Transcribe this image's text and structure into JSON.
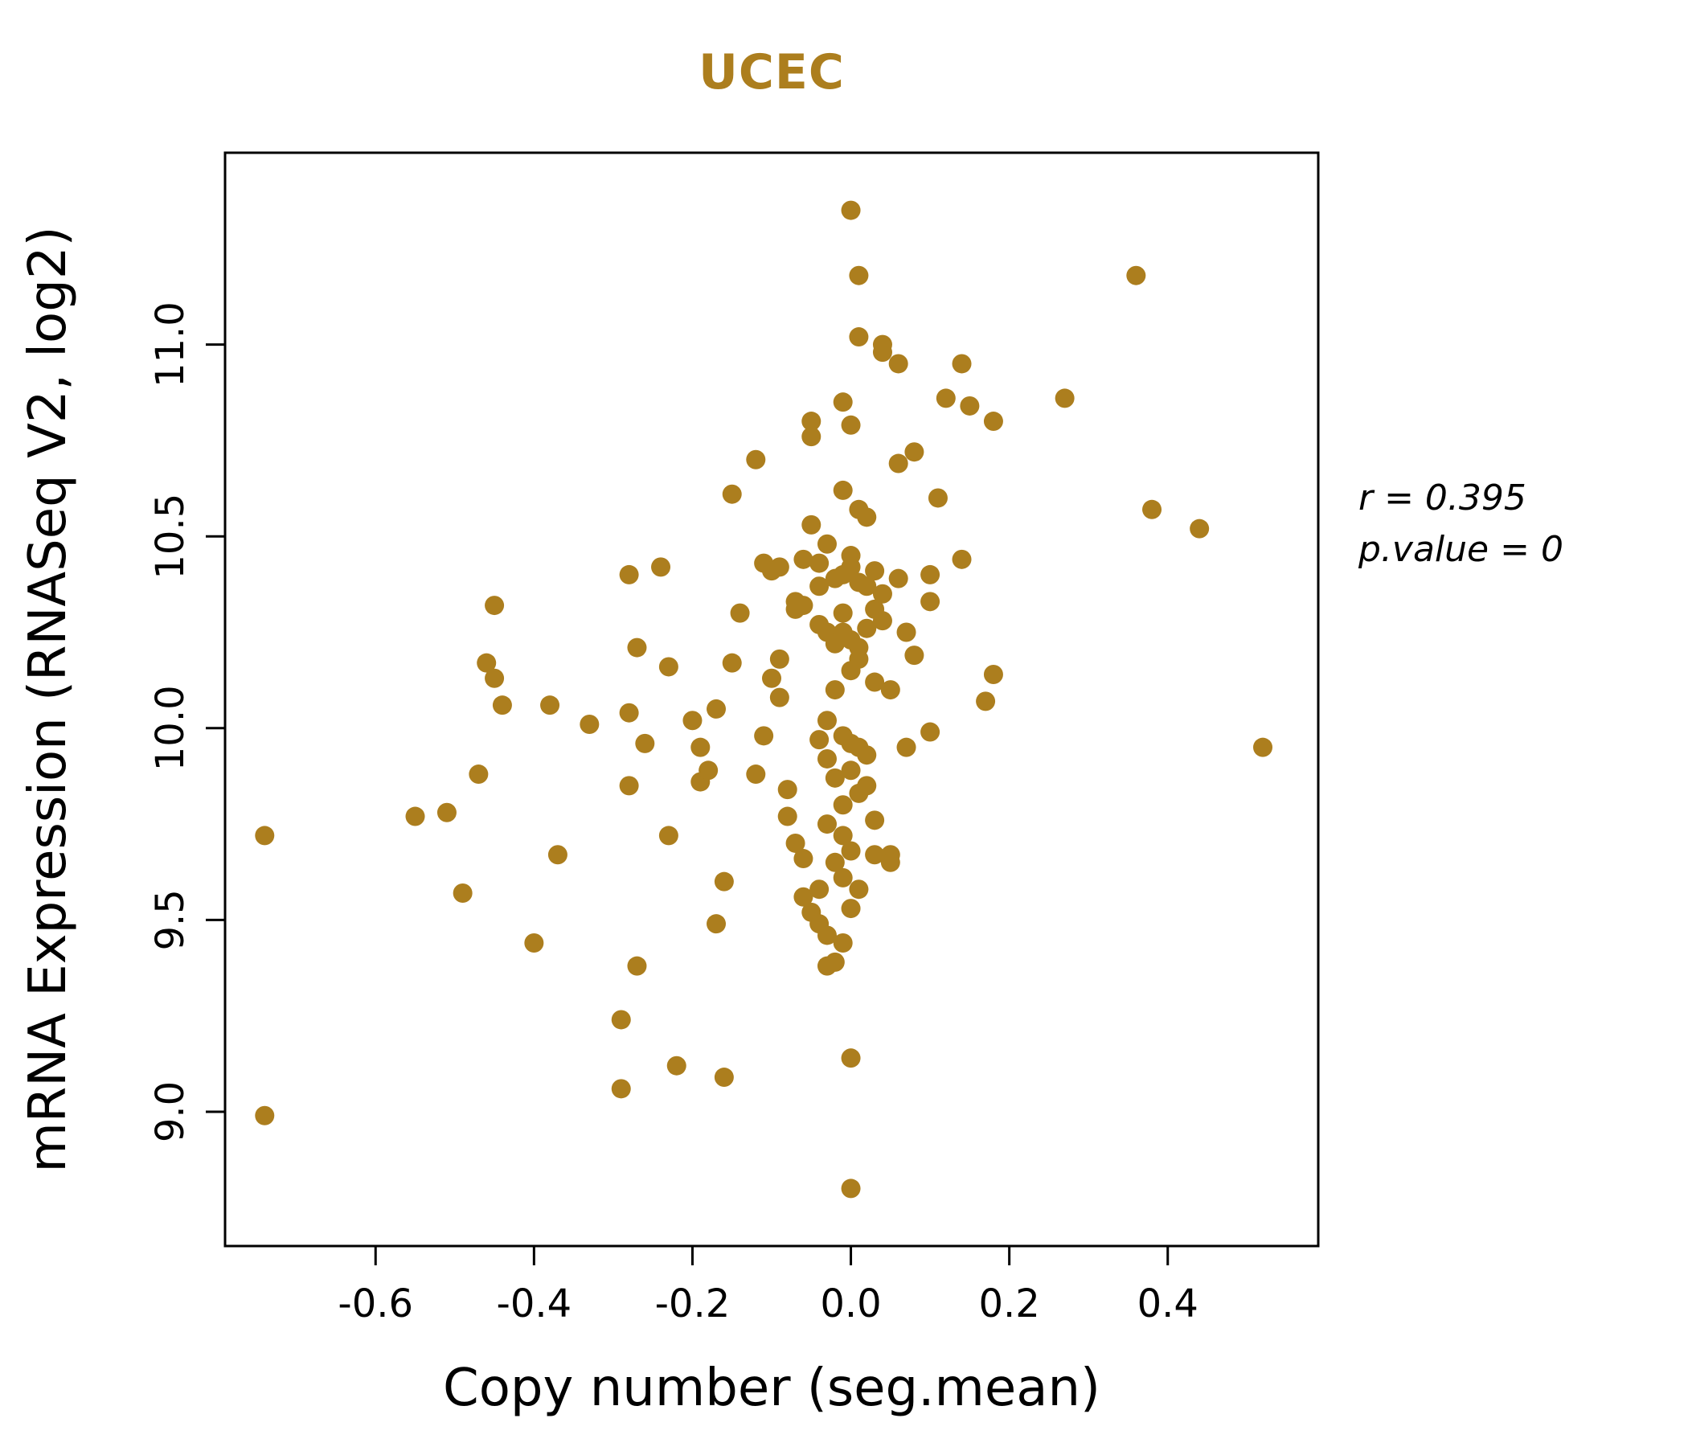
{
  "chart_data": {
    "type": "scatter",
    "title": "UCEC",
    "xlabel": "Copy number (seg.mean)",
    "ylabel": "mRNA Expression (RNASeq V2, log2)",
    "xlim": [
      -0.79,
      0.59
    ],
    "ylim": [
      8.65,
      11.5
    ],
    "grid": false,
    "xticks": {
      "values": [
        -0.6,
        -0.4,
        -0.2,
        0.0,
        0.2,
        0.4
      ],
      "labels": [
        "-0.6",
        "-0.4",
        "-0.2",
        "0.0",
        "0.2",
        "0.4"
      ]
    },
    "yticks": {
      "values": [
        9.0,
        9.5,
        10.0,
        10.5,
        11.0
      ],
      "labels": [
        "9.0",
        "9.5",
        "10.0",
        "10.5",
        "11.0"
      ]
    },
    "point_color": "#AC7E1E",
    "title_color": "#AC7E1E",
    "annotation_lines": [
      "r = 0.395",
      "p.value = 0"
    ],
    "correlation_r": 0.395,
    "p_value": 0,
    "points": [
      [
        -0.74,
        9.72
      ],
      [
        -0.74,
        8.99
      ],
      [
        -0.55,
        9.77
      ],
      [
        -0.51,
        9.78
      ],
      [
        -0.49,
        9.57
      ],
      [
        -0.47,
        9.88
      ],
      [
        -0.46,
        10.17
      ],
      [
        -0.45,
        10.13
      ],
      [
        -0.45,
        10.32
      ],
      [
        -0.44,
        10.06
      ],
      [
        -0.4,
        9.44
      ],
      [
        -0.38,
        10.06
      ],
      [
        -0.37,
        9.67
      ],
      [
        -0.33,
        10.01
      ],
      [
        -0.29,
        9.24
      ],
      [
        -0.29,
        9.06
      ],
      [
        -0.28,
        9.85
      ],
      [
        -0.28,
        10.4
      ],
      [
        -0.28,
        10.04
      ],
      [
        -0.27,
        10.21
      ],
      [
        -0.27,
        9.38
      ],
      [
        -0.26,
        9.96
      ],
      [
        -0.24,
        10.42
      ],
      [
        -0.23,
        10.16
      ],
      [
        -0.23,
        9.72
      ],
      [
        -0.22,
        9.12
      ],
      [
        -0.2,
        10.02
      ],
      [
        -0.19,
        9.95
      ],
      [
        -0.19,
        9.86
      ],
      [
        -0.18,
        9.89
      ],
      [
        -0.17,
        9.49
      ],
      [
        -0.17,
        10.05
      ],
      [
        -0.16,
        9.09
      ],
      [
        -0.16,
        9.6
      ],
      [
        -0.15,
        10.61
      ],
      [
        -0.15,
        10.17
      ],
      [
        -0.14,
        10.3
      ],
      [
        -0.12,
        10.7
      ],
      [
        -0.12,
        9.88
      ],
      [
        -0.11,
        9.98
      ],
      [
        -0.11,
        10.43
      ],
      [
        -0.1,
        10.41
      ],
      [
        -0.1,
        10.13
      ],
      [
        -0.09,
        10.08
      ],
      [
        -0.09,
        10.42
      ],
      [
        -0.09,
        10.18
      ],
      [
        -0.08,
        9.77
      ],
      [
        -0.08,
        9.84
      ],
      [
        -0.07,
        10.31
      ],
      [
        -0.07,
        10.33
      ],
      [
        -0.07,
        9.7
      ],
      [
        -0.06,
        10.44
      ],
      [
        -0.06,
        10.32
      ],
      [
        -0.06,
        9.66
      ],
      [
        -0.06,
        9.56
      ],
      [
        -0.05,
        9.52
      ],
      [
        -0.05,
        10.8
      ],
      [
        -0.05,
        10.76
      ],
      [
        -0.05,
        10.53
      ],
      [
        -0.04,
        10.43
      ],
      [
        -0.04,
        10.37
      ],
      [
        -0.04,
        10.27
      ],
      [
        -0.04,
        9.97
      ],
      [
        -0.04,
        9.58
      ],
      [
        -0.04,
        9.49
      ],
      [
        -0.03,
        10.48
      ],
      [
        -0.03,
        10.25
      ],
      [
        -0.03,
        10.02
      ],
      [
        -0.03,
        9.92
      ],
      [
        -0.03,
        9.75
      ],
      [
        -0.03,
        9.46
      ],
      [
        -0.03,
        9.38
      ],
      [
        -0.02,
        10.39
      ],
      [
        -0.02,
        10.22
      ],
      [
        -0.02,
        10.1
      ],
      [
        -0.02,
        9.87
      ],
      [
        -0.02,
        9.65
      ],
      [
        -0.02,
        9.39
      ],
      [
        -0.01,
        10.85
      ],
      [
        -0.01,
        10.62
      ],
      [
        -0.01,
        10.4
      ],
      [
        -0.01,
        10.3
      ],
      [
        -0.01,
        10.25
      ],
      [
        -0.01,
        9.98
      ],
      [
        -0.01,
        9.8
      ],
      [
        -0.01,
        9.72
      ],
      [
        -0.01,
        9.61
      ],
      [
        -0.01,
        9.44
      ],
      [
        0.0,
        11.35
      ],
      [
        0.0,
        10.79
      ],
      [
        0.0,
        10.45
      ],
      [
        0.0,
        10.42
      ],
      [
        0.0,
        10.23
      ],
      [
        0.0,
        10.15
      ],
      [
        0.0,
        9.96
      ],
      [
        0.0,
        9.89
      ],
      [
        0.0,
        9.68
      ],
      [
        0.0,
        9.53
      ],
      [
        0.0,
        9.14
      ],
      [
        0.0,
        8.8
      ],
      [
        0.01,
        11.18
      ],
      [
        0.01,
        11.02
      ],
      [
        0.01,
        10.57
      ],
      [
        0.01,
        10.38
      ],
      [
        0.01,
        10.21
      ],
      [
        0.01,
        10.18
      ],
      [
        0.01,
        9.95
      ],
      [
        0.01,
        9.83
      ],
      [
        0.01,
        9.58
      ],
      [
        0.02,
        10.55
      ],
      [
        0.02,
        10.37
      ],
      [
        0.02,
        10.26
      ],
      [
        0.02,
        9.93
      ],
      [
        0.02,
        9.85
      ],
      [
        0.03,
        10.41
      ],
      [
        0.03,
        10.31
      ],
      [
        0.03,
        10.12
      ],
      [
        0.03,
        9.76
      ],
      [
        0.03,
        9.67
      ],
      [
        0.04,
        11.0
      ],
      [
        0.04,
        10.98
      ],
      [
        0.04,
        10.35
      ],
      [
        0.04,
        10.28
      ],
      [
        0.05,
        10.1
      ],
      [
        0.05,
        9.67
      ],
      [
        0.05,
        9.65
      ],
      [
        0.06,
        10.95
      ],
      [
        0.06,
        10.69
      ],
      [
        0.06,
        10.39
      ],
      [
        0.07,
        10.25
      ],
      [
        0.07,
        9.95
      ],
      [
        0.08,
        10.72
      ],
      [
        0.08,
        10.19
      ],
      [
        0.1,
        10.4
      ],
      [
        0.1,
        10.33
      ],
      [
        0.1,
        9.99
      ],
      [
        0.11,
        10.6
      ],
      [
        0.12,
        10.86
      ],
      [
        0.14,
        10.95
      ],
      [
        0.14,
        10.44
      ],
      [
        0.15,
        10.84
      ],
      [
        0.17,
        10.07
      ],
      [
        0.18,
        10.8
      ],
      [
        0.18,
        10.14
      ],
      [
        0.27,
        10.86
      ],
      [
        0.36,
        11.18
      ],
      [
        0.38,
        10.57
      ],
      [
        0.44,
        10.52
      ],
      [
        0.52,
        9.95
      ]
    ]
  },
  "annotation": {
    "line1": "r = 0.395",
    "line2": "p.value = 0"
  }
}
